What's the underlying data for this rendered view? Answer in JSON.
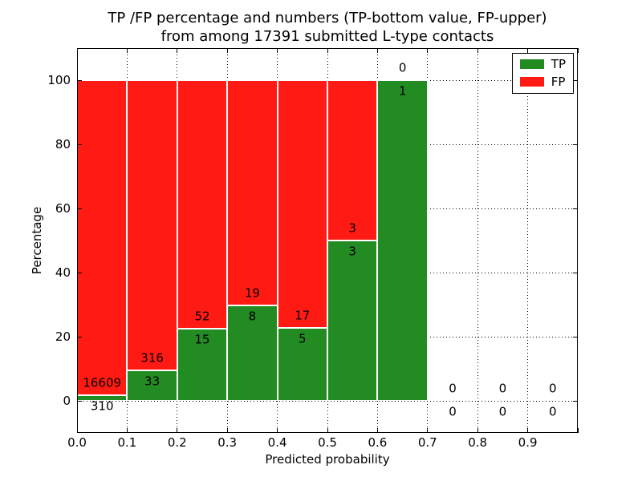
{
  "chart_data": {
    "type": "bar",
    "stacked": true,
    "title_line1": "TP /FP percentage and numbers (TP-bottom value, FP-upper)",
    "title_line2": "from among 17391 submitted L-type contacts",
    "xlabel": "Predicted probability",
    "ylabel": "Percentage",
    "xlim": [
      0.0,
      1.0
    ],
    "ylim": [
      -10,
      110
    ],
    "grid": "dotted",
    "total_contacts": 17391,
    "colors": {
      "tp": "#228b22",
      "fp": "#ff1b13",
      "text": "#000000",
      "background": "#ffffff"
    },
    "xticks": [
      {
        "v": 0.0,
        "label": "0.0"
      },
      {
        "v": 0.1,
        "label": "0.1"
      },
      {
        "v": 0.2,
        "label": "0.2"
      },
      {
        "v": 0.3,
        "label": "0.3"
      },
      {
        "v": 0.4,
        "label": "0.4"
      },
      {
        "v": 0.5,
        "label": "0.5"
      },
      {
        "v": 0.6,
        "label": "0.6"
      },
      {
        "v": 0.7,
        "label": "0.7"
      },
      {
        "v": 0.8,
        "label": "0.8"
      },
      {
        "v": 0.9,
        "label": "0.9"
      },
      {
        "v": 1.0,
        "label": ""
      }
    ],
    "yticks": [
      0,
      20,
      40,
      60,
      80,
      100
    ],
    "legend": {
      "position": "upper right",
      "entries": [
        {
          "label": "TP",
          "color": "#228b22"
        },
        {
          "label": "FP",
          "color": "#ff1b13"
        }
      ]
    },
    "bins": [
      {
        "range": [
          0.0,
          0.1
        ],
        "tp": 310,
        "fp": 16609,
        "tp_pct": 1.83
      },
      {
        "range": [
          0.1,
          0.2
        ],
        "tp": 33,
        "fp": 316,
        "tp_pct": 9.46
      },
      {
        "range": [
          0.2,
          0.3
        ],
        "tp": 15,
        "fp": 52,
        "tp_pct": 22.39
      },
      {
        "range": [
          0.3,
          0.4
        ],
        "tp": 8,
        "fp": 19,
        "tp_pct": 29.63
      },
      {
        "range": [
          0.4,
          0.5
        ],
        "tp": 5,
        "fp": 17,
        "tp_pct": 22.73
      },
      {
        "range": [
          0.5,
          0.6
        ],
        "tp": 3,
        "fp": 3,
        "tp_pct": 50.0
      },
      {
        "range": [
          0.6,
          0.7
        ],
        "tp": 1,
        "fp": 0,
        "tp_pct": 100.0
      },
      {
        "range": [
          0.7,
          0.8
        ],
        "tp": 0,
        "fp": 0,
        "tp_pct": null
      },
      {
        "range": [
          0.8,
          0.9
        ],
        "tp": 0,
        "fp": 0,
        "tp_pct": null
      },
      {
        "range": [
          0.9,
          1.0
        ],
        "tp": 0,
        "fp": 0,
        "tp_pct": null
      }
    ]
  }
}
